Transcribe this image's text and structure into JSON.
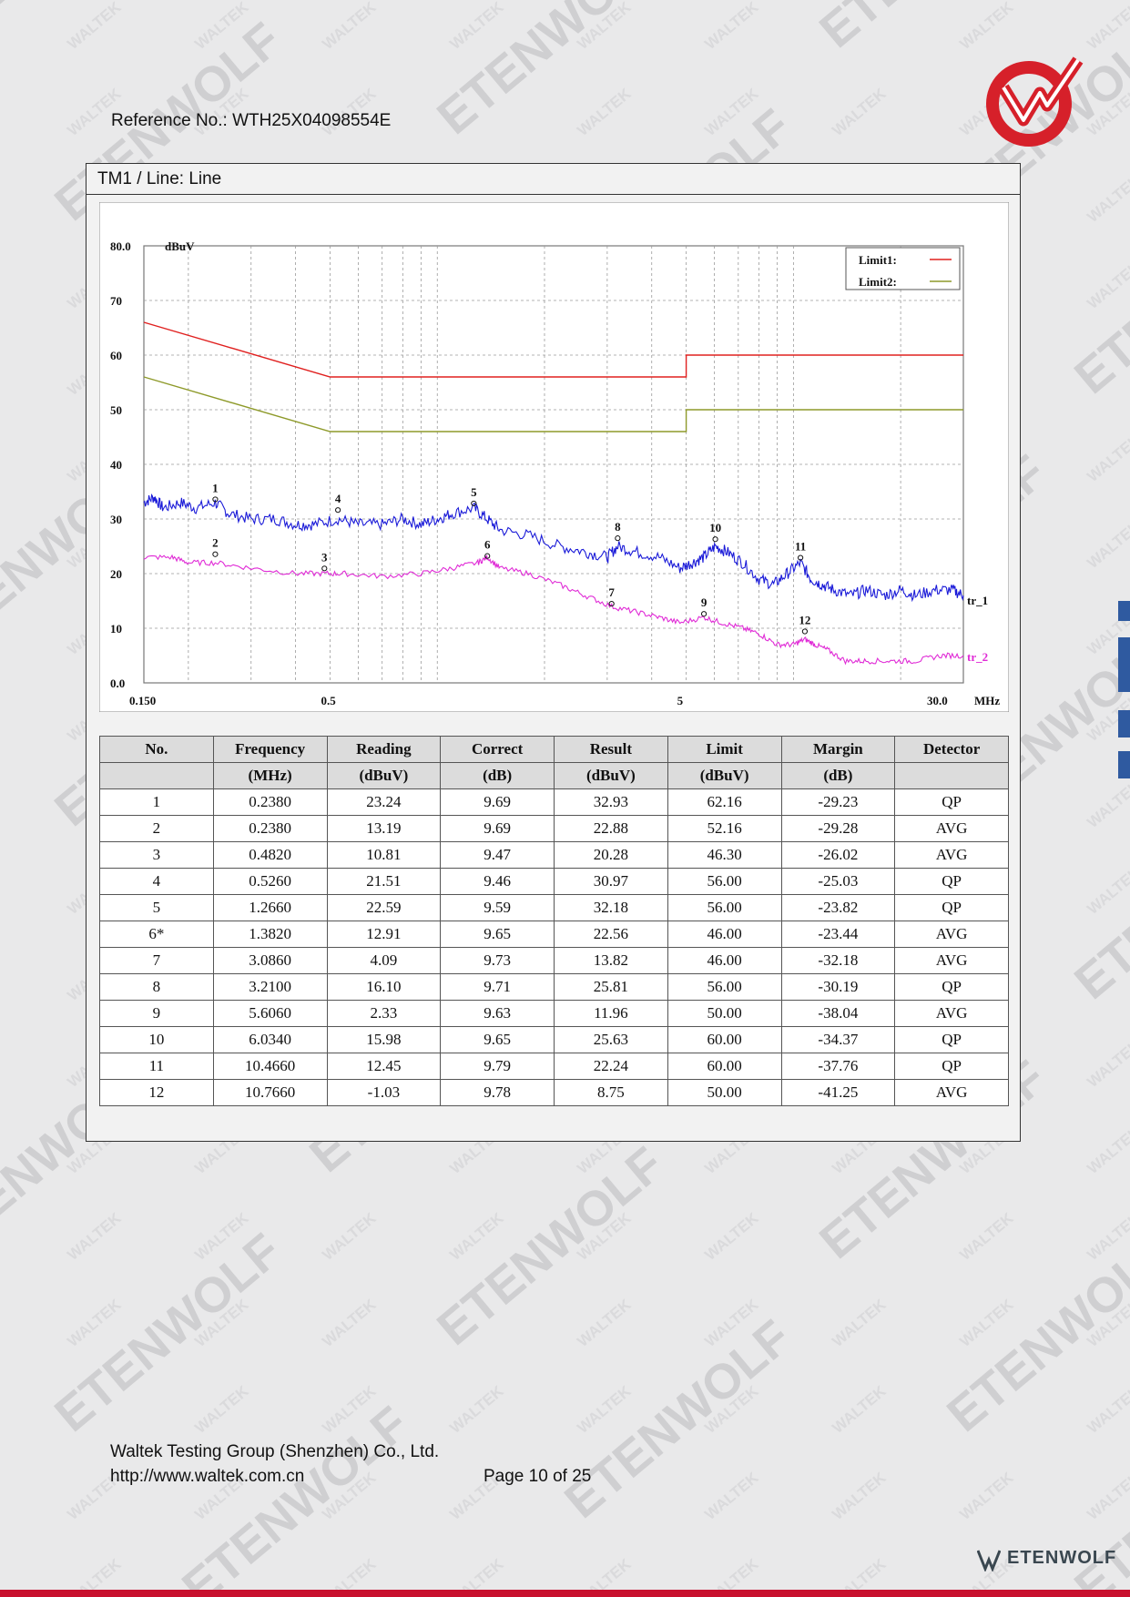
{
  "header": {
    "reference": "Reference No.: WTH25X04098554E"
  },
  "panel": {
    "title": "TM1 / Line: Line"
  },
  "chart_data": {
    "type": "line",
    "x_scale": "log",
    "xlim": [
      0.15,
      30
    ],
    "ylim": [
      0,
      80
    ],
    "ylabel": "dBuV",
    "xunit": "MHz",
    "y_ticks": [
      "80.0",
      "70",
      "60",
      "50",
      "40",
      "30",
      "20",
      "10",
      "0.0"
    ],
    "x_ticks": [
      "0.150",
      "0.5",
      "5",
      "30.0"
    ],
    "x_tick_values": [
      0.15,
      0.5,
      5,
      30
    ],
    "grid": true,
    "legend": {
      "position": "top-right",
      "entries": [
        "Limit1:",
        "Limit2:"
      ]
    },
    "limits": [
      {
        "name": "Limit1:",
        "color": "#e0201f",
        "points": [
          [
            0.15,
            66
          ],
          [
            0.5,
            56
          ],
          [
            5,
            56
          ],
          [
            5,
            60
          ],
          [
            30,
            60
          ]
        ]
      },
      {
        "name": "Limit2:",
        "color": "#8e9a2a",
        "points": [
          [
            0.15,
            56
          ],
          [
            0.5,
            46
          ],
          [
            5,
            46
          ],
          [
            5,
            50
          ],
          [
            30,
            50
          ]
        ]
      }
    ],
    "series": [
      {
        "name": "tr_1",
        "color": "#1a1ad8",
        "points": [
          [
            0.15,
            33
          ],
          [
            0.16,
            34
          ],
          [
            0.17,
            32
          ],
          [
            0.19,
            33
          ],
          [
            0.21,
            32
          ],
          [
            0.238,
            33
          ],
          [
            0.26,
            31
          ],
          [
            0.3,
            30
          ],
          [
            0.35,
            30
          ],
          [
            0.4,
            29
          ],
          [
            0.45,
            29
          ],
          [
            0.526,
            30
          ],
          [
            0.6,
            29
          ],
          [
            0.7,
            29
          ],
          [
            0.8,
            30
          ],
          [
            0.9,
            29
          ],
          [
            1.0,
            30
          ],
          [
            1.1,
            31
          ],
          [
            1.266,
            32
          ],
          [
            1.38,
            30
          ],
          [
            1.5,
            28
          ],
          [
            1.8,
            27
          ],
          [
            2.2,
            25
          ],
          [
            2.6,
            24
          ],
          [
            3.0,
            23
          ],
          [
            3.21,
            25
          ],
          [
            3.6,
            24
          ],
          [
            4.2,
            23
          ],
          [
            4.8,
            21
          ],
          [
            5.2,
            22
          ],
          [
            5.6,
            23
          ],
          [
            6.034,
            25
          ],
          [
            6.5,
            24
          ],
          [
            7.2,
            22
          ],
          [
            8.0,
            19
          ],
          [
            8.8,
            18
          ],
          [
            9.6,
            20
          ],
          [
            10.466,
            22
          ],
          [
            11.2,
            19
          ],
          [
            12.0,
            18
          ],
          [
            13.0,
            17
          ],
          [
            14.5,
            16
          ],
          [
            16.0,
            17
          ],
          [
            18.0,
            16
          ],
          [
            20.0,
            17
          ],
          [
            22.0,
            16
          ],
          [
            25.0,
            17
          ],
          [
            28.0,
            17
          ],
          [
            30.0,
            16
          ]
        ]
      },
      {
        "name": "tr_2",
        "color": "#e02bd6",
        "points": [
          [
            0.15,
            23
          ],
          [
            0.18,
            23
          ],
          [
            0.2,
            22
          ],
          [
            0.238,
            22
          ],
          [
            0.3,
            21
          ],
          [
            0.4,
            20
          ],
          [
            0.482,
            20
          ],
          [
            0.55,
            20
          ],
          [
            0.7,
            19.5
          ],
          [
            0.9,
            20
          ],
          [
            1.1,
            21
          ],
          [
            1.3,
            22
          ],
          [
            1.382,
            23
          ],
          [
            1.5,
            21
          ],
          [
            1.8,
            20
          ],
          [
            2.2,
            18
          ],
          [
            2.6,
            16
          ],
          [
            3.086,
            14
          ],
          [
            3.6,
            13
          ],
          [
            4.2,
            12
          ],
          [
            4.8,
            11
          ],
          [
            5.606,
            12
          ],
          [
            6.3,
            11
          ],
          [
            7.2,
            10
          ],
          [
            8.0,
            9
          ],
          [
            9.0,
            7
          ],
          [
            10.0,
            7
          ],
          [
            10.766,
            8
          ],
          [
            11.5,
            7
          ],
          [
            12.5,
            6
          ],
          [
            14.0,
            4
          ],
          [
            16.0,
            4
          ],
          [
            19.0,
            4
          ],
          [
            22.0,
            4
          ],
          [
            26.0,
            5
          ],
          [
            30.0,
            5
          ]
        ]
      }
    ],
    "markers": [
      {
        "label": "1",
        "x": 0.238,
        "y": 32.93
      },
      {
        "label": "2",
        "x": 0.238,
        "y": 22.88
      },
      {
        "label": "3",
        "x": 0.482,
        "y": 20.28
      },
      {
        "label": "4",
        "x": 0.526,
        "y": 30.97
      },
      {
        "label": "5",
        "x": 1.266,
        "y": 32.18
      },
      {
        "label": "6",
        "x": 1.382,
        "y": 22.56
      },
      {
        "label": "7",
        "x": 3.086,
        "y": 13.82
      },
      {
        "label": "8",
        "x": 3.21,
        "y": 25.81
      },
      {
        "label": "9",
        "x": 5.606,
        "y": 11.96
      },
      {
        "label": "10",
        "x": 6.034,
        "y": 25.63
      },
      {
        "label": "11",
        "x": 10.466,
        "y": 22.24
      },
      {
        "label": "12",
        "x": 10.766,
        "y": 8.75
      }
    ]
  },
  "table": {
    "headers": [
      "No.",
      "Frequency",
      "Reading",
      "Correct",
      "Result",
      "Limit",
      "Margin",
      "Detector"
    ],
    "units": [
      "",
      "(MHz)",
      "(dBuV)",
      "(dB)",
      "(dBuV)",
      "(dBuV)",
      "(dB)",
      ""
    ],
    "rows": [
      [
        "1",
        "0.2380",
        "23.24",
        "9.69",
        "32.93",
        "62.16",
        "-29.23",
        "QP"
      ],
      [
        "2",
        "0.2380",
        "13.19",
        "9.69",
        "22.88",
        "52.16",
        "-29.28",
        "AVG"
      ],
      [
        "3",
        "0.4820",
        "10.81",
        "9.47",
        "20.28",
        "46.30",
        "-26.02",
        "AVG"
      ],
      [
        "4",
        "0.5260",
        "21.51",
        "9.46",
        "30.97",
        "56.00",
        "-25.03",
        "QP"
      ],
      [
        "5",
        "1.2660",
        "22.59",
        "9.59",
        "32.18",
        "56.00",
        "-23.82",
        "QP"
      ],
      [
        "6*",
        "1.3820",
        "12.91",
        "9.65",
        "22.56",
        "46.00",
        "-23.44",
        "AVG"
      ],
      [
        "7",
        "3.0860",
        "4.09",
        "9.73",
        "13.82",
        "46.00",
        "-32.18",
        "AVG"
      ],
      [
        "8",
        "3.2100",
        "16.10",
        "9.71",
        "25.81",
        "56.00",
        "-30.19",
        "QP"
      ],
      [
        "9",
        "5.6060",
        "2.33",
        "9.63",
        "11.96",
        "50.00",
        "-38.04",
        "AVG"
      ],
      [
        "10",
        "6.0340",
        "15.98",
        "9.65",
        "25.63",
        "60.00",
        "-34.37",
        "QP"
      ],
      [
        "11",
        "10.4660",
        "12.45",
        "9.79",
        "22.24",
        "60.00",
        "-37.76",
        "QP"
      ],
      [
        "12",
        "10.7660",
        "-1.03",
        "9.78",
        "8.75",
        "50.00",
        "-41.25",
        "AVG"
      ]
    ]
  },
  "footer": {
    "company": "Waltek Testing Group (Shenzhen) Co., Ltd.",
    "url": "http://www.waltek.com.cn",
    "page": "Page 10 of 25",
    "brand": "ETENWOLF"
  },
  "watermark": {
    "words": [
      "WALTEK",
      "ETENWOLF"
    ]
  },
  "colors": {
    "accent": "#c8102e",
    "logo": "#d6202a"
  }
}
